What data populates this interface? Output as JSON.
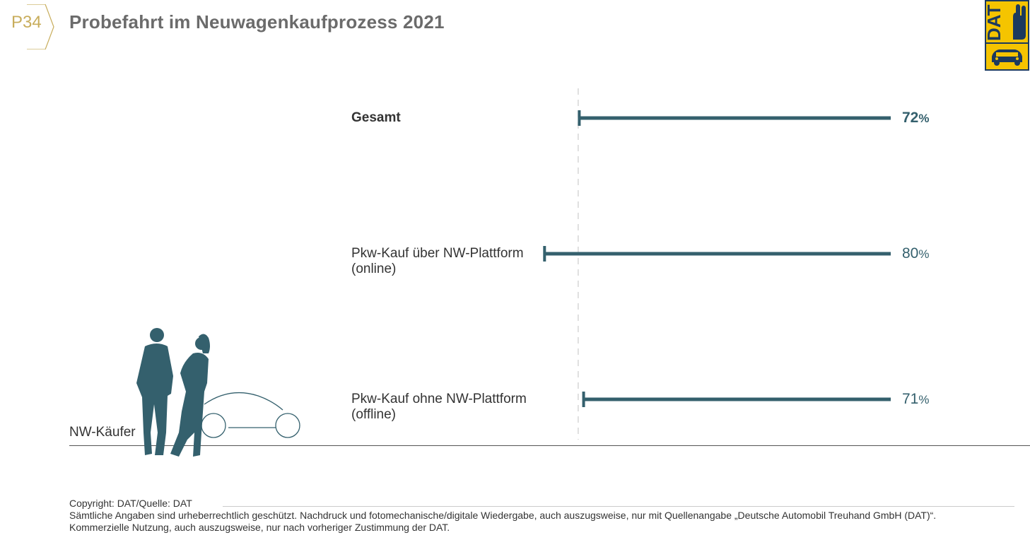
{
  "header": {
    "badge": "P34",
    "title": "Probefahrt im Neuwagenkaufprozess 2021"
  },
  "logo": {
    "text": "DAT",
    "colors": {
      "yellow": "#f5c400",
      "navy": "#1c3a5e"
    }
  },
  "colors": {
    "bar": "#34606d",
    "reference_line": "#cccccc",
    "badge": "#c8ad5c"
  },
  "segment_label": "NW-Käufer",
  "chart_data": {
    "type": "bar",
    "orientation": "horizontal",
    "categories": [
      "Gesamt",
      "Pkw-Kauf über NW-Plattform (online)",
      "Pkw-Kauf ohne NW-Plattform (offline)"
    ],
    "rows": [
      {
        "line1": "Gesamt",
        "line2": "",
        "value": 72,
        "bold": true
      },
      {
        "line1": "Pkw-Kauf über NW-Plattform",
        "line2": "(online)",
        "value": 80,
        "bold": false
      },
      {
        "line1": "Pkw-Kauf ohne NW-Plattform",
        "line2": "(offline)",
        "value": 71,
        "bold": false
      }
    ],
    "unit": "%",
    "reference_value": 72,
    "reference_line": "dashed"
  },
  "footer": {
    "line1": "Copyright: DAT/Quelle: DAT",
    "line2": "Sämtliche Angaben sind urheberrechtlich geschützt. Nachdruck und fotomechanische/digitale Wiedergabe, auch auszugsweise, nur mit Quellenangabe „Deutsche Automobil Treuhand GmbH (DAT)“.",
    "line3": "Kommerzielle Nutzung, auch auszugsweise, nur nach vorheriger Zustimmung der DAT."
  }
}
